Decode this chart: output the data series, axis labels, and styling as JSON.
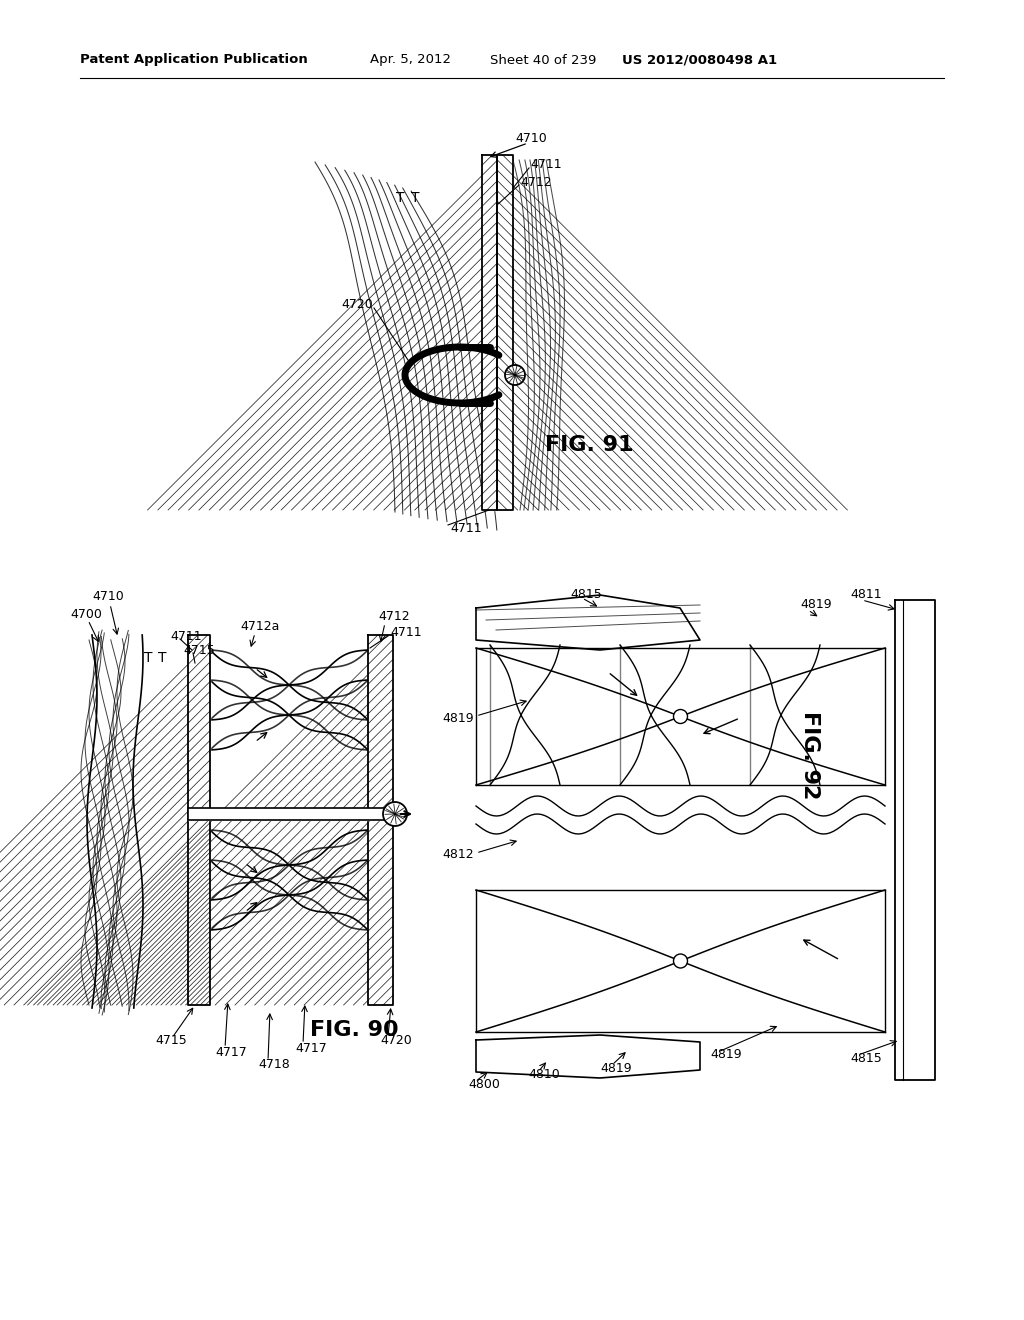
{
  "bg_color": "#ffffff",
  "header_left": "Patent Application Publication",
  "header_mid1": "Apr. 5, 2012",
  "header_mid2": "Sheet 40 of 239",
  "header_right": "US 2012/0080498 A1",
  "fig90_label": "FIG. 90",
  "fig91_label": "FIG. 91",
  "fig92_label": "FIG. 92",
  "lc": "#000000",
  "white": "#ffffff",
  "lgray": "#cccccc"
}
